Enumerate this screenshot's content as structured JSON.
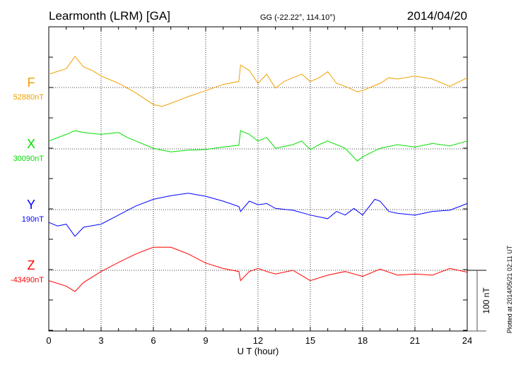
{
  "chart_data": {
    "type": "line",
    "title": "Learmonth (LRM)  [GA]",
    "coords": "GG (-22.22°, 114.10°)",
    "date": "2014/04/20",
    "xlabel": "U T (hour)",
    "xlim": [
      0,
      24
    ],
    "xticks": [
      "0",
      "3",
      "6",
      "9",
      "12",
      "15",
      "18",
      "21",
      "24"
    ],
    "scale_label": "100 nT",
    "scale_nT": 100,
    "plotted_note": "Plotted at 2014/05/21  02:11  UT",
    "grid": true,
    "series": [
      {
        "name": "F",
        "baseline_label": "52880nT",
        "color": "#f0a000",
        "points": [
          [
            0,
            22
          ],
          [
            1,
            31
          ],
          [
            1.5,
            51
          ],
          [
            2,
            34
          ],
          [
            2.5,
            28
          ],
          [
            3,
            19
          ],
          [
            4,
            7
          ],
          [
            5,
            -9
          ],
          [
            6,
            -28
          ],
          [
            6.5,
            -31
          ],
          [
            7,
            -26
          ],
          [
            8,
            -15
          ],
          [
            9,
            -5
          ],
          [
            10,
            5
          ],
          [
            10.9,
            10
          ],
          [
            11,
            37
          ],
          [
            11.5,
            28
          ],
          [
            12,
            7
          ],
          [
            12.5,
            22
          ],
          [
            13,
            -1
          ],
          [
            13.5,
            10
          ],
          [
            14,
            16
          ],
          [
            14.5,
            22
          ],
          [
            15,
            10
          ],
          [
            15.5,
            16
          ],
          [
            16,
            26
          ],
          [
            16.5,
            7
          ],
          [
            17,
            2
          ],
          [
            17.7,
            -7
          ],
          [
            18,
            -5
          ],
          [
            19,
            7
          ],
          [
            19.5,
            16
          ],
          [
            20,
            14
          ],
          [
            21,
            19
          ],
          [
            22,
            14
          ],
          [
            23,
            2
          ],
          [
            24,
            16
          ]
        ]
      },
      {
        "name": "X",
        "baseline_label": "30090nT",
        "color": "#00e000",
        "points": [
          [
            0,
            13
          ],
          [
            1,
            24
          ],
          [
            1.5,
            30
          ],
          [
            2,
            27
          ],
          [
            3,
            24
          ],
          [
            4,
            27
          ],
          [
            4.5,
            19
          ],
          [
            5,
            13
          ],
          [
            6,
            1
          ],
          [
            7,
            -5
          ],
          [
            8,
            -2
          ],
          [
            9,
            -1
          ],
          [
            10,
            3
          ],
          [
            10.9,
            6
          ],
          [
            11,
            30
          ],
          [
            11.5,
            24
          ],
          [
            12,
            13
          ],
          [
            12.5,
            19
          ],
          [
            13,
            1
          ],
          [
            14,
            7
          ],
          [
            14.5,
            13
          ],
          [
            15,
            -1
          ],
          [
            15.5,
            7
          ],
          [
            16,
            13
          ],
          [
            17,
            1
          ],
          [
            17.7,
            -20
          ],
          [
            18,
            -13
          ],
          [
            19,
            1
          ],
          [
            20,
            7
          ],
          [
            21,
            3
          ],
          [
            22,
            9
          ],
          [
            23,
            5
          ],
          [
            24,
            13
          ]
        ]
      },
      {
        "name": "Y",
        "baseline_label": "190nT",
        "color": "#0000ff",
        "points": [
          [
            0,
            -21
          ],
          [
            0.5,
            -27
          ],
          [
            1,
            -24
          ],
          [
            1.5,
            -44
          ],
          [
            2,
            -29
          ],
          [
            3,
            -24
          ],
          [
            4,
            -9
          ],
          [
            5,
            6
          ],
          [
            6,
            17
          ],
          [
            7,
            23
          ],
          [
            8,
            27
          ],
          [
            9,
            22
          ],
          [
            10,
            14
          ],
          [
            10.9,
            5
          ],
          [
            11,
            -3
          ],
          [
            11.5,
            14
          ],
          [
            12,
            8
          ],
          [
            12.5,
            10
          ],
          [
            13,
            2
          ],
          [
            14,
            -1
          ],
          [
            15,
            -9
          ],
          [
            16,
            -15
          ],
          [
            16.5,
            -3
          ],
          [
            17,
            -9
          ],
          [
            17.5,
            2
          ],
          [
            18,
            -9
          ],
          [
            18.7,
            17
          ],
          [
            19,
            14
          ],
          [
            19.5,
            -3
          ],
          [
            20,
            -6
          ],
          [
            21,
            -9
          ],
          [
            22,
            -3
          ],
          [
            23,
            -1
          ],
          [
            24,
            10
          ]
        ]
      },
      {
        "name": "Z",
        "baseline_label": "-43490nT",
        "color": "#ff0000",
        "points": [
          [
            0,
            -17
          ],
          [
            1,
            -26
          ],
          [
            1.5,
            -35
          ],
          [
            2,
            -20
          ],
          [
            3,
            -2
          ],
          [
            4,
            13
          ],
          [
            5,
            27
          ],
          [
            6,
            38
          ],
          [
            7,
            38
          ],
          [
            8,
            27
          ],
          [
            9,
            12
          ],
          [
            10,
            3
          ],
          [
            10.9,
            -2
          ],
          [
            11,
            -17
          ],
          [
            11.5,
            -2
          ],
          [
            12,
            3
          ],
          [
            12.5,
            -2
          ],
          [
            13,
            -6
          ],
          [
            14,
            0
          ],
          [
            15,
            -17
          ],
          [
            16,
            -8
          ],
          [
            17,
            -2
          ],
          [
            18,
            -10
          ],
          [
            19,
            2
          ],
          [
            20,
            -8
          ],
          [
            21,
            -6
          ],
          [
            22,
            -8
          ],
          [
            23,
            3
          ],
          [
            24,
            -3
          ]
        ]
      }
    ]
  }
}
